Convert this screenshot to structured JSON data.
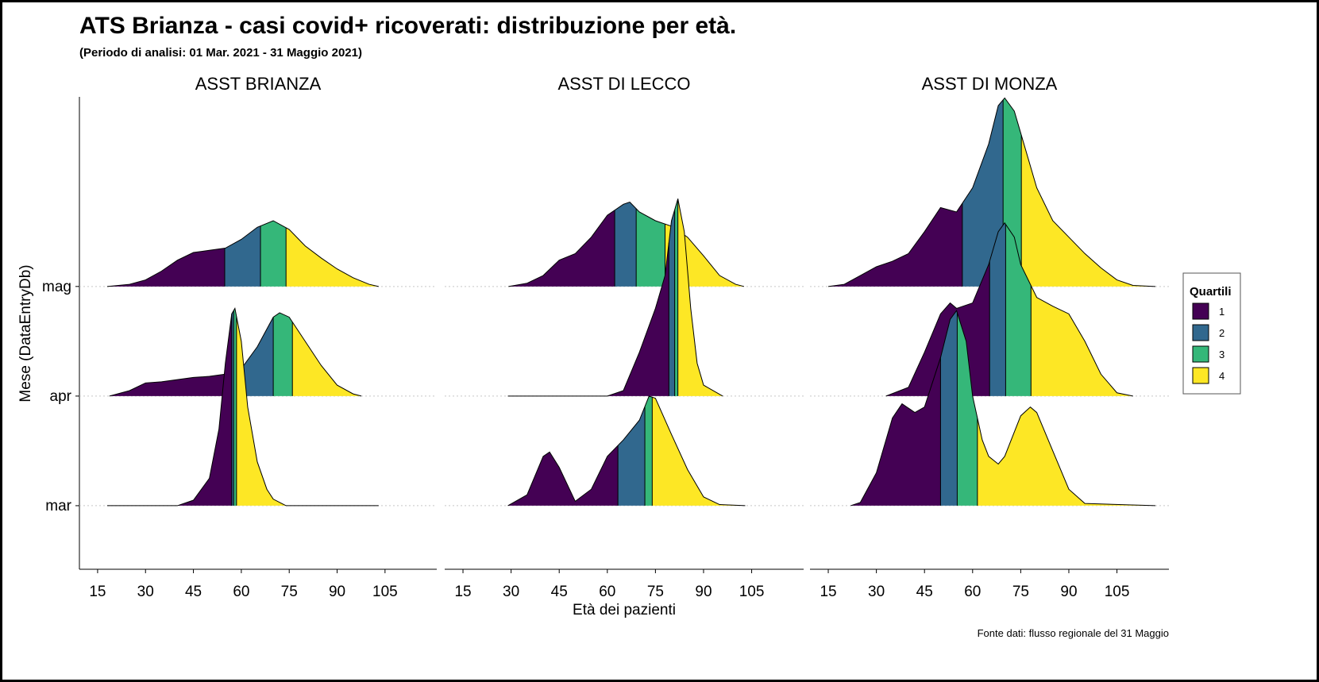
{
  "chart_data": {
    "type": "ridgeline",
    "title": "ATS Brianza - casi covid+ ricoverati: distribuzione per età.",
    "subtitle": "(Periodo di analisi: 01 Mar. 2021 - 31 Maggio 2021)",
    "x_label": "Età dei pazienti",
    "y_label": "Mese (DataEntryDb)",
    "caption": "Fonte dati: flusso regionale del 31 Maggio",
    "categories": [
      "mar",
      "apr",
      "mag"
    ],
    "xlim": [
      9.3,
      121.2
    ],
    "xticks": [
      15,
      30,
      45,
      60,
      75,
      90,
      105
    ],
    "ylim": [
      0.42,
      4.73
    ],
    "legend": {
      "title": "Quartili",
      "position": "right"
    },
    "series": [
      {
        "name": "1",
        "color": "#440154"
      },
      {
        "name": "2",
        "color": "#31688e"
      },
      {
        "name": "3",
        "color": "#35b779"
      },
      {
        "name": "4",
        "color": "#fde725"
      }
    ],
    "panels": [
      {
        "title": "ASST BRIANZA",
        "ridges": [
          {
            "x": [
              18,
              40,
              45,
              50,
              53,
              55,
              57,
              58,
              60,
              62,
              65,
              68,
              70,
              74,
              103
            ],
            "values": [
              0,
              0,
              0.05,
              0.25,
              0.7,
              1.3,
              1.75,
              1.8,
              1.5,
              0.9,
              0.4,
              0.15,
              0.06,
              0,
              0
            ],
            "quartiles": [
              57,
              57.6,
              58.5
            ]
          },
          {
            "x": [
              18.7,
              25,
              30,
              35,
              40,
              45,
              50,
              55,
              60,
              65,
              70,
              72,
              75,
              80,
              85,
              90,
              95,
              97.6
            ],
            "values": [
              0,
              0.05,
              0.12,
              0.13,
              0.15,
              0.17,
              0.18,
              0.2,
              0.25,
              0.45,
              0.72,
              0.76,
              0.72,
              0.5,
              0.28,
              0.1,
              0.02,
              0
            ],
            "quartiles": [
              56,
              70,
              76
            ]
          },
          {
            "x": [
              18,
              25,
              30,
              35,
              40,
              45,
              50,
              55,
              60,
              65,
              70,
              75,
              80,
              85,
              90,
              95,
              100,
              103
            ],
            "values": [
              0,
              0.02,
              0.06,
              0.14,
              0.24,
              0.31,
              0.33,
              0.35,
              0.43,
              0.54,
              0.6,
              0.52,
              0.37,
              0.26,
              0.16,
              0.08,
              0.02,
              0
            ],
            "quartiles": [
              54.8,
              66,
              74
            ]
          }
        ]
      },
      {
        "title": "ASST DI LECCO",
        "ridges": [
          {
            "x": [
              29,
              35,
              40,
              42,
              45,
              50,
              55,
              60,
              65,
              70,
              73,
              75,
              80,
              85,
              90,
              95,
              103
            ],
            "values": [
              0,
              0.1,
              0.45,
              0.49,
              0.35,
              0.04,
              0.15,
              0.45,
              0.6,
              0.78,
              1.0,
              0.98,
              0.65,
              0.33,
              0.08,
              0.01,
              0
            ],
            "quartiles": [
              63.3,
              71.7,
              74
            ]
          },
          {
            "x": [
              29,
              60,
              65,
              70,
              75,
              78,
              80,
              82,
              84,
              86,
              88,
              90,
              96
            ],
            "values": [
              0,
              0,
              0.05,
              0.4,
              0.8,
              1.1,
              1.6,
              1.8,
              1.5,
              0.8,
              0.3,
              0.1,
              0
            ],
            "quartiles": [
              79.2,
              81,
              82
            ]
          },
          {
            "x": [
              29.2,
              35,
              40,
              45,
              50,
              55,
              60,
              65,
              67,
              70,
              75,
              80,
              85,
              90,
              95,
              100,
              102.6
            ],
            "values": [
              0,
              0.03,
              0.1,
              0.24,
              0.3,
              0.45,
              0.65,
              0.75,
              0.77,
              0.68,
              0.6,
              0.55,
              0.45,
              0.28,
              0.1,
              0.02,
              0
            ],
            "quartiles": [
              62.3,
              69,
              78
            ]
          }
        ]
      },
      {
        "title": "ASST DI MONZA",
        "ridges": [
          {
            "x": [
              22,
              25,
              30,
              35,
              38,
              42,
              45,
              50,
              53,
              55,
              58,
              60,
              63,
              65,
              68,
              70,
              75,
              78,
              80,
              85,
              90,
              95,
              117
            ],
            "values": [
              0,
              0.03,
              0.3,
              0.8,
              0.93,
              0.85,
              0.9,
              1.35,
              1.7,
              1.78,
              1.5,
              1.0,
              0.6,
              0.45,
              0.38,
              0.45,
              0.82,
              0.9,
              0.85,
              0.5,
              0.15,
              0.02,
              0
            ],
            "quartiles": [
              50,
              55.2,
              61.5
            ]
          },
          {
            "x": [
              33,
              40,
              45,
              50,
              53,
              55,
              60,
              65,
              68,
              70,
              73,
              75,
              80,
              85,
              90,
              95,
              100,
              105,
              110
            ],
            "values": [
              0,
              0.08,
              0.4,
              0.75,
              0.85,
              0.8,
              0.85,
              1.2,
              1.5,
              1.58,
              1.45,
              1.2,
              0.9,
              0.82,
              0.75,
              0.5,
              0.2,
              0.03,
              0
            ],
            "quartiles": [
              65.3,
              70.3,
              78.2
            ]
          },
          {
            "x": [
              15,
              20,
              25,
              30,
              35,
              40,
              45,
              50,
              55,
              60,
              65,
              68,
              70,
              73,
              75,
              80,
              85,
              90,
              95,
              100,
              105,
              110,
              117
            ],
            "values": [
              0,
              0.02,
              0.1,
              0.18,
              0.23,
              0.3,
              0.5,
              0.72,
              0.68,
              0.9,
              1.3,
              1.65,
              1.72,
              1.6,
              1.4,
              0.9,
              0.6,
              0.45,
              0.3,
              0.17,
              0.06,
              0.01,
              0
            ],
            "quartiles": [
              56.8,
              69.5,
              75.2
            ]
          }
        ]
      }
    ]
  }
}
